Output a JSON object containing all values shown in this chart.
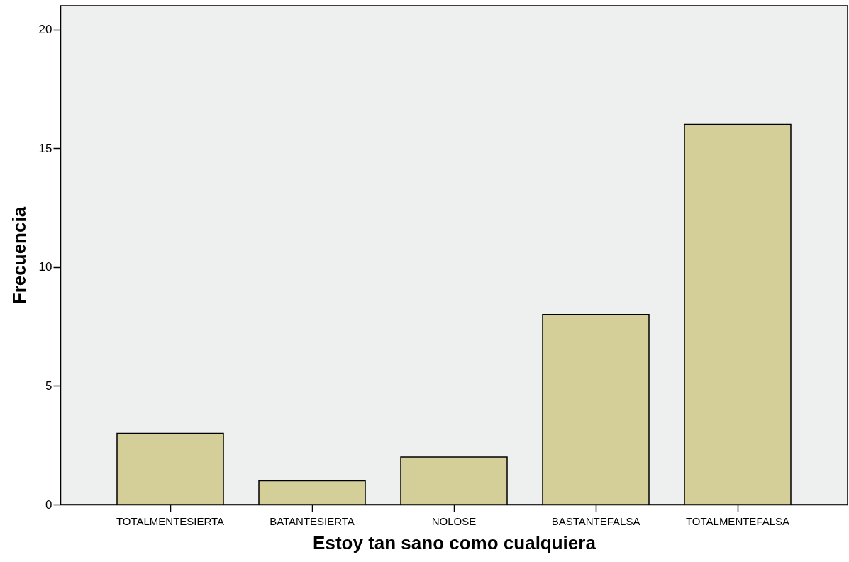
{
  "chart_data": {
    "type": "bar",
    "xlabel": "Estoy tan sano como cualquiera",
    "ylabel": "Frecuencia",
    "categories": [
      "TOTALMENTESIERTA",
      "BATANTESIERTA",
      "NOLOSE",
      "BASTANTEFALSA",
      "TOTALMENTEFALSA"
    ],
    "values": [
      3,
      1,
      2,
      8,
      16
    ],
    "color": "#d4cf98",
    "ylim": [
      0,
      21
    ],
    "yticks": [
      0,
      5,
      10,
      15,
      20
    ],
    "grid": false
  }
}
